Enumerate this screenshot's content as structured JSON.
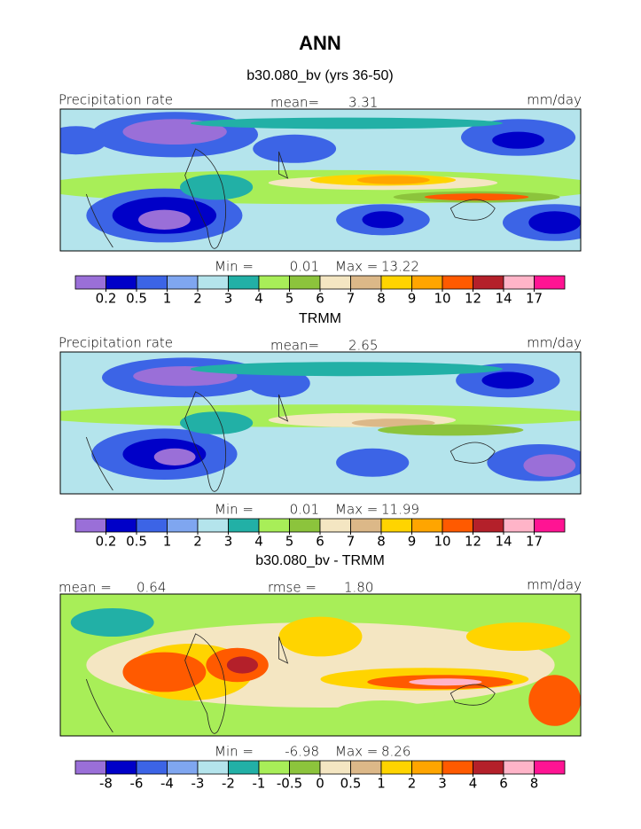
{
  "title": "ANN",
  "panels": [
    {
      "title": "b30.080_bv (yrs 36-50)",
      "header_left": "Precipitation rate",
      "stat1_label": "mean=",
      "stat1_value": "3.31",
      "header_right": "mm/day",
      "min_label": "Min =",
      "min_value": "0.01",
      "max_label": "Max =",
      "max_value": "13.22",
      "colorbar": {
        "levels": [
          0.2,
          0.5,
          1,
          2,
          3,
          4,
          5,
          6,
          7,
          8,
          9,
          10,
          12,
          14,
          17
        ],
        "colors": [
          "#9a6fd8",
          "#0000c8",
          "#3c64e6",
          "#7fa6f0",
          "#b4e4ec",
          "#22b0a6",
          "#a8ee58",
          "#8cc43c",
          "#f4e6c2",
          "#dcb888",
          "#ffd400",
          "#ffa500",
          "#ff5a00",
          "#b4202a",
          "#ffb4c8",
          "#ff1493"
        ]
      }
    },
    {
      "title": "TRMM",
      "header_left": "Precipitation rate",
      "stat1_label": "mean=",
      "stat1_value": "2.65",
      "header_right": "mm/day",
      "min_label": "Min =",
      "min_value": "0.01",
      "max_label": "Max =",
      "max_value": "11.99",
      "colorbar": {
        "levels": [
          0.2,
          0.5,
          1,
          2,
          3,
          4,
          5,
          6,
          7,
          8,
          9,
          10,
          12,
          14,
          17
        ],
        "colors": [
          "#9a6fd8",
          "#0000c8",
          "#3c64e6",
          "#7fa6f0",
          "#b4e4ec",
          "#22b0a6",
          "#a8ee58",
          "#8cc43c",
          "#f4e6c2",
          "#dcb888",
          "#ffd400",
          "#ffa500",
          "#ff5a00",
          "#b4202a",
          "#ffb4c8",
          "#ff1493"
        ]
      }
    },
    {
      "title": "b30.080_bv - TRMM",
      "stat1_label": "mean =",
      "stat1_value": "0.64",
      "stat2_label": "rmse =",
      "stat2_value": "1.80",
      "header_right": "mm/day",
      "min_label": "Min =",
      "min_value": "-6.98",
      "max_label": "Max =",
      "max_value": "8.26",
      "colorbar": {
        "levels": [
          -8,
          -6,
          -4,
          -3,
          -2,
          -1,
          -0.5,
          0,
          0.5,
          1,
          2,
          3,
          4,
          6,
          8
        ],
        "colors": [
          "#9a6fd8",
          "#0000c8",
          "#3c64e6",
          "#7fa6f0",
          "#b4e4ec",
          "#22b0a6",
          "#a8ee58",
          "#8cc43c",
          "#f4e6c2",
          "#dcb888",
          "#ffd400",
          "#ffa500",
          "#ff5a00",
          "#b4202a",
          "#ffb4c8",
          "#ff1493"
        ]
      }
    }
  ]
}
